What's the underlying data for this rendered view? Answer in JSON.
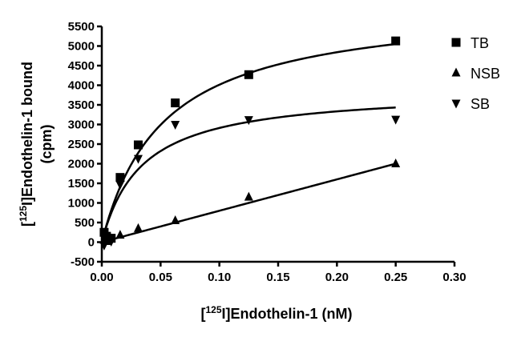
{
  "chart_data": {
    "type": "scatter",
    "xlabel": {
      "prefix": "[",
      "sup": "125",
      "suffix": "I]Endothelin-1 (nM)"
    },
    "ylabel": {
      "line1_prefix": "[",
      "line1_sup": "125",
      "line1_suffix": "I]Endothelin-1 bound",
      "line2": "(cpm)"
    },
    "xlim": [
      0,
      0.3
    ],
    "ylim": [
      -500,
      5500
    ],
    "xticks": [
      0.0,
      0.05,
      0.1,
      0.15,
      0.2,
      0.25,
      0.3
    ],
    "xtick_labels": [
      "0.00",
      "0.05",
      "0.10",
      "0.15",
      "0.20",
      "0.25",
      "0.30"
    ],
    "yticks": [
      -500,
      0,
      500,
      1000,
      1500,
      2000,
      2500,
      3000,
      3500,
      4000,
      4500,
      5000,
      5500
    ],
    "ytick_labels": [
      "-500",
      "0",
      "500",
      "1000",
      "1500",
      "2000",
      "2500",
      "3000",
      "3500",
      "4000",
      "4500",
      "5000",
      "5500"
    ],
    "grid": false,
    "legend_position": "top-right",
    "series": [
      {
        "name": "TB",
        "marker": "square",
        "x": [
          0.002,
          0.004,
          0.008,
          0.0156,
          0.031,
          0.0625,
          0.125,
          0.25
        ],
        "y": [
          250,
          150,
          100,
          1650,
          2480,
          3550,
          4270,
          5130
        ],
        "fit": {
          "model": "hyperbola_plus_linear",
          "Bmax": 6100,
          "Kd": 0.052,
          "NS": 0
        }
      },
      {
        "name": "NSB",
        "marker": "triangle-up",
        "x": [
          0.002,
          0.004,
          0.008,
          0.0156,
          0.031,
          0.0625,
          0.125,
          0.25
        ],
        "y": [
          50,
          20,
          80,
          180,
          350,
          550,
          1150,
          2000
        ],
        "fit": {
          "model": "linear",
          "slope": 8000,
          "intercept": 0
        }
      },
      {
        "name": "SB",
        "marker": "triangle-down",
        "x": [
          0.002,
          0.004,
          0.008,
          0.0156,
          0.031,
          0.0625,
          0.125,
          0.25
        ],
        "y": [
          -80,
          130,
          20,
          1470,
          2130,
          3000,
          3120,
          3130
        ],
        "fit": {
          "model": "hyperbola",
          "Bmax": 3900,
          "Kd": 0.034
        }
      }
    ]
  }
}
